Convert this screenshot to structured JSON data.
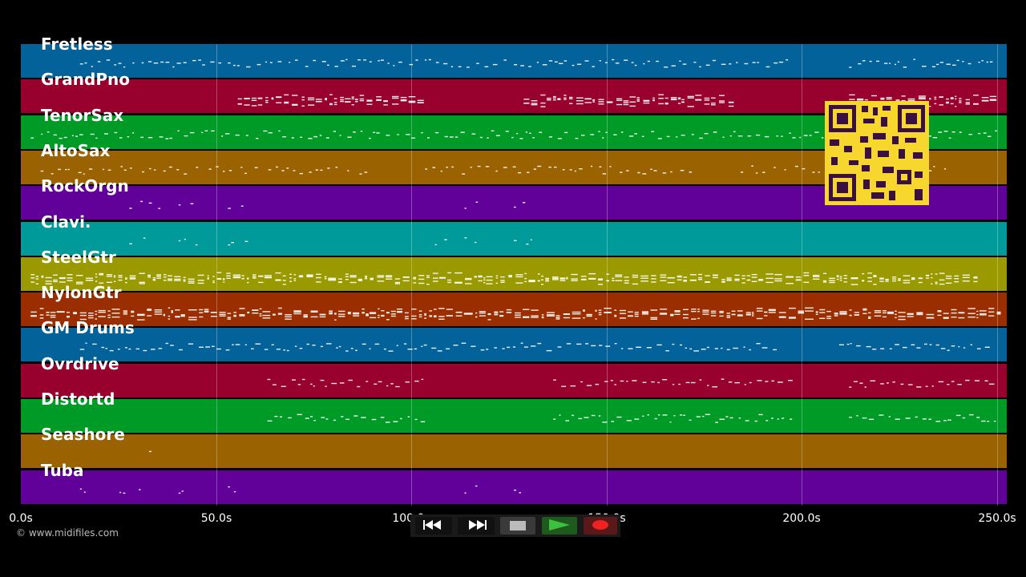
{
  "tracks": [
    {
      "name": "Fretless",
      "color": "#03629a"
    },
    {
      "name": "GrandPno",
      "color": "#98002e"
    },
    {
      "name": "TenorSax",
      "color": "#009a27"
    },
    {
      "name": "AltoSax",
      "color": "#9a6200"
    },
    {
      "name": "RockOrgn",
      "color": "#62009a"
    },
    {
      "name": "Clavi.",
      "color": "#009a9a"
    },
    {
      "name": "SteelGtr",
      "color": "#9a9a00"
    },
    {
      "name": "NylonGtr",
      "color": "#9a2e00"
    },
    {
      "name": "GM Drums",
      "color": "#03629a"
    },
    {
      "name": "Ovrdrive",
      "color": "#98002e"
    },
    {
      "name": "Distortd",
      "color": "#009a27"
    },
    {
      "name": "Seashore",
      "color": "#9a6200"
    },
    {
      "name": "Tuba",
      "color": "#62009a"
    }
  ],
  "timeline": {
    "labels": [
      "0.0s",
      "50.0s",
      "100.0s",
      "150.0s",
      "200.0s",
      "250.0s"
    ],
    "values": [
      0,
      50,
      100,
      150,
      200,
      250
    ],
    "max": 252.5
  },
  "copyright": "© www.midifiles.com",
  "transport": {
    "rewind": "rewind-icon",
    "fast_forward": "fast-forward-icon",
    "stop": "stop-icon",
    "play": "play-icon",
    "record": "record-icon"
  },
  "accent_colors": {
    "play": "#2e8b2e",
    "record": "#d62020",
    "qr": "#f7d72e"
  }
}
